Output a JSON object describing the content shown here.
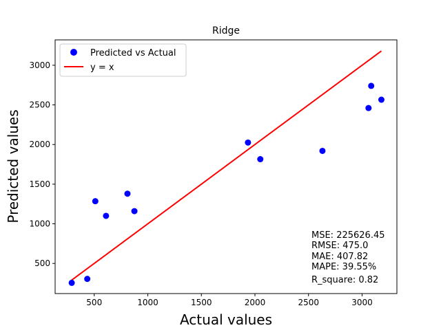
{
  "chart_data": {
    "type": "scatter",
    "title": "Ridge",
    "xlabel": "Actual values",
    "ylabel": "Predicted values",
    "xlim": [
      135,
      3325
    ],
    "ylim": [
      120,
      3320
    ],
    "x_ticks": [
      500,
      1000,
      1500,
      2000,
      2500,
      3000
    ],
    "y_ticks": [
      500,
      1000,
      1500,
      2000,
      2500,
      3000
    ],
    "grid": false,
    "legend_position": "top-left",
    "series": [
      {
        "name": "Predicted vs Actual",
        "kind": "scatter",
        "color": "#0000ff",
        "points": [
          {
            "x": 290,
            "y": 255
          },
          {
            "x": 435,
            "y": 305
          },
          {
            "x": 510,
            "y": 1285
          },
          {
            "x": 610,
            "y": 1100
          },
          {
            "x": 810,
            "y": 1380
          },
          {
            "x": 875,
            "y": 1160
          },
          {
            "x": 1935,
            "y": 2025
          },
          {
            "x": 2050,
            "y": 1815
          },
          {
            "x": 2630,
            "y": 1920
          },
          {
            "x": 3060,
            "y": 2460
          },
          {
            "x": 3085,
            "y": 2740
          },
          {
            "x": 3180,
            "y": 2565
          }
        ]
      },
      {
        "name": "y = x",
        "kind": "line",
        "color": "#ff0000",
        "points": [
          {
            "x": 285,
            "y": 285
          },
          {
            "x": 3180,
            "y": 3180
          }
        ]
      }
    ],
    "annotation": [
      "MSE: 225626.45",
      "RMSE: 475.0",
      "MAE: 407.82",
      "MAPE: 39.55%",
      "R_square: 0.82"
    ]
  }
}
